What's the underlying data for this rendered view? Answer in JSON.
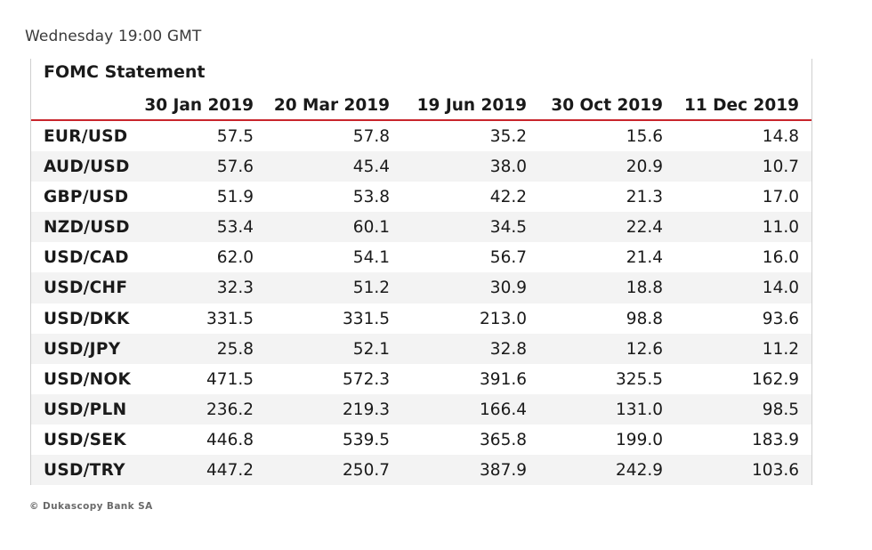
{
  "subtitle": "Wednesday 19:00 GMT",
  "table": {
    "title": "FOMC Statement",
    "columns": [
      "30 Jan 2019",
      "20 Mar 2019",
      "19 Jun 2019",
      "30 Oct 2019",
      "11 Dec 2019"
    ],
    "rows": [
      {
        "pair": "EUR/USD",
        "values": [
          "57.5",
          "57.8",
          "35.2",
          "15.6",
          "14.8"
        ]
      },
      {
        "pair": "AUD/USD",
        "values": [
          "57.6",
          "45.4",
          "38.0",
          "20.9",
          "10.7"
        ]
      },
      {
        "pair": "GBP/USD",
        "values": [
          "51.9",
          "53.8",
          "42.2",
          "21.3",
          "17.0"
        ]
      },
      {
        "pair": "NZD/USD",
        "values": [
          "53.4",
          "60.1",
          "34.5",
          "22.4",
          "11.0"
        ]
      },
      {
        "pair": "USD/CAD",
        "values": [
          "62.0",
          "54.1",
          "56.7",
          "21.4",
          "16.0"
        ]
      },
      {
        "pair": "USD/CHF",
        "values": [
          "32.3",
          "51.2",
          "30.9",
          "18.8",
          "14.0"
        ]
      },
      {
        "pair": "USD/DKK",
        "values": [
          "331.5",
          "331.5",
          "213.0",
          "98.8",
          "93.6"
        ]
      },
      {
        "pair": "USD/JPY",
        "values": [
          "25.8",
          "52.1",
          "32.8",
          "12.6",
          "11.2"
        ]
      },
      {
        "pair": "USD/NOK",
        "values": [
          "471.5",
          "572.3",
          "391.6",
          "325.5",
          "162.9"
        ]
      },
      {
        "pair": "USD/PLN",
        "values": [
          "236.2",
          "219.3",
          "166.4",
          "131.0",
          "98.5"
        ]
      },
      {
        "pair": "USD/SEK",
        "values": [
          "446.8",
          "539.5",
          "365.8",
          "199.0",
          "183.9"
        ]
      },
      {
        "pair": "USD/TRY",
        "values": [
          "447.2",
          "250.7",
          "387.9",
          "242.9",
          "103.6"
        ]
      }
    ]
  },
  "footer": "© Dukascopy Bank SA",
  "colors": {
    "header_rule": "#c8252c",
    "alt_row": "#f3f3f3",
    "border": "#cfcfcf"
  }
}
